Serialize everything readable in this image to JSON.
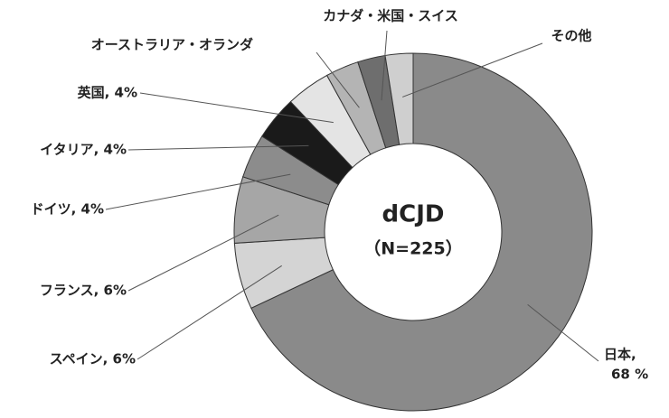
{
  "chart_data": {
    "type": "donut",
    "center_text": [
      "dCJD",
      "（N=225）"
    ],
    "labels": [
      [
        "日本,",
        "68 %"
      ],
      [
        "スペイン, 6%"
      ],
      [
        "フランス, 6%"
      ],
      [
        "ドイツ, 4%"
      ],
      [
        "イタリア, 4%"
      ],
      [
        "英国, 4%"
      ],
      [
        "オーストラリア・オランダ"
      ],
      [
        "カナダ・米国・スイス"
      ],
      [
        "その他"
      ]
    ],
    "values": [
      68,
      6,
      6,
      4,
      4,
      4,
      3,
      2.5,
      2.5
    ],
    "colors": [
      "#8a8a8a",
      "#d4d4d4",
      "#a6a6a6",
      "#8c8c8c",
      "#1a1a1a",
      "#e4e4e4",
      "#b4b4b4",
      "#6e6e6e",
      "#cfcfcf"
    ]
  }
}
